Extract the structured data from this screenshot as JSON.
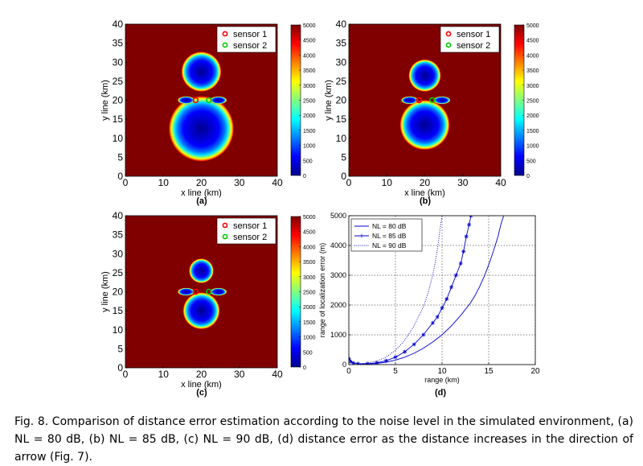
{
  "figure": {
    "caption": "Fig. 8. Comparison of distance error estimation according to the noise level in the simulated environment, (a) NL = 80 dB, (b) NL = 85 dB, (c) NL = 90 dB, (d) distance error as the distance increases in the direction of arrow (Fig. 7)."
  },
  "colors": {
    "heatmap_background": "#800000",
    "colormap": [
      "#00008f",
      "#0000ff",
      "#0080ff",
      "#00ffff",
      "#80ff80",
      "#ffff00",
      "#ff8000",
      "#ff0000",
      "#800000"
    ],
    "sensor1": "#ff0000",
    "sensor2": "#00cc00",
    "line_series": "#0000cc"
  },
  "chart_data": [
    {
      "type": "heatmap",
      "panel_label": "(a)",
      "xlabel": "x line (km)",
      "ylabel": "y line (km)",
      "xlim": [
        0,
        40
      ],
      "ylim": [
        0,
        40
      ],
      "xticks": [
        0,
        10,
        20,
        30,
        40
      ],
      "yticks": [
        0,
        5,
        10,
        15,
        20,
        25,
        30,
        35,
        40
      ],
      "colorbar": {
        "min": 0,
        "max": 5000,
        "ticks": [
          0,
          500,
          1000,
          1500,
          2000,
          2500,
          3000,
          3500,
          4000,
          4500,
          5000
        ]
      },
      "legend": [
        "sensor 1",
        "sensor 2"
      ],
      "sensors": [
        {
          "name": "sensor 1",
          "x": 18.5,
          "y": 20
        },
        {
          "name": "sensor 2",
          "x": 22,
          "y": 20
        }
      ],
      "low_error_region": {
        "upper_lobe_center": [
          20,
          27.5
        ],
        "upper_lobe_radius": 5.2,
        "lower_lobe_center": [
          20,
          12.5
        ],
        "lower_lobe_radius": 8.5
      }
    },
    {
      "type": "heatmap",
      "panel_label": "(b)",
      "xlabel": "x line (km)",
      "ylabel": "y line (km)",
      "xlim": [
        0,
        40
      ],
      "ylim": [
        0,
        40
      ],
      "xticks": [
        0,
        10,
        20,
        30,
        40
      ],
      "yticks": [
        0,
        5,
        10,
        15,
        20,
        25,
        30,
        35,
        40
      ],
      "colorbar": {
        "min": 0,
        "max": 5000,
        "ticks": [
          0,
          500,
          1000,
          1500,
          2000,
          2500,
          3000,
          3500,
          4000,
          4500,
          5000
        ]
      },
      "legend": [
        "sensor 1",
        "sensor 2"
      ],
      "sensors": [
        {
          "name": "sensor 1",
          "x": 18.5,
          "y": 20
        },
        {
          "name": "sensor 2",
          "x": 22,
          "y": 20
        }
      ],
      "low_error_region": {
        "upper_lobe_center": [
          20,
          26.5
        ],
        "upper_lobe_radius": 4.2,
        "lower_lobe_center": [
          20,
          13.5
        ],
        "lower_lobe_radius": 6.5
      }
    },
    {
      "type": "heatmap",
      "panel_label": "(c)",
      "xlabel": "x line (km)",
      "ylabel": "y line (km)",
      "xlim": [
        0,
        40
      ],
      "ylim": [
        0,
        40
      ],
      "xticks": [
        0,
        10,
        20,
        30,
        40
      ],
      "yticks": [
        0,
        5,
        10,
        15,
        20,
        25,
        30,
        35,
        40
      ],
      "colorbar": {
        "min": 0,
        "max": 5000,
        "ticks": [
          0,
          500,
          1000,
          1500,
          2000,
          2500,
          3000,
          3500,
          4000,
          4500,
          5000
        ]
      },
      "legend": [
        "sensor 1",
        "sensor 2"
      ],
      "sensors": [
        {
          "name": "sensor 1",
          "x": 18.5,
          "y": 20
        },
        {
          "name": "sensor 2",
          "x": 22,
          "y": 20
        }
      ],
      "low_error_region": {
        "upper_lobe_center": [
          20,
          25.5
        ],
        "upper_lobe_radius": 3.2,
        "lower_lobe_center": [
          20,
          15
        ],
        "lower_lobe_radius": 4.8
      }
    },
    {
      "type": "line",
      "panel_label": "(d)",
      "xlabel": "range (km)",
      "ylabel": "range of localization error (m)",
      "xlim": [
        0,
        20
      ],
      "ylim": [
        0,
        5000
      ],
      "xticks": [
        0,
        5,
        10,
        15,
        20
      ],
      "yticks": [
        0,
        1000,
        2000,
        3000,
        4000,
        5000
      ],
      "grid": "dotted",
      "legend_position": "top-left",
      "series": [
        {
          "name": "NL = 80 dB",
          "style": "solid",
          "x": [
            0,
            0.2,
            0.5,
            1,
            2,
            3,
            4,
            5,
            6,
            7,
            8,
            9,
            10,
            11,
            12,
            13,
            13.5,
            14,
            14.5,
            15,
            15.5,
            16,
            16.3,
            16.6
          ],
          "y": [
            250,
            120,
            60,
            30,
            20,
            40,
            80,
            150,
            250,
            380,
            550,
            760,
            1000,
            1300,
            1650,
            2050,
            2300,
            2600,
            2950,
            3350,
            3800,
            4300,
            4700,
            5000
          ]
        },
        {
          "name": "NL = 85 dB",
          "style": "star-markers",
          "x": [
            0,
            0.2,
            0.5,
            1,
            2,
            3,
            4,
            5,
            6,
            7,
            8,
            9,
            9.5,
            10,
            10.5,
            11,
            11.5,
            12,
            12.3,
            12.6,
            12.9,
            13.1
          ],
          "y": [
            200,
            100,
            50,
            30,
            30,
            60,
            130,
            250,
            430,
            680,
            1000,
            1400,
            1600,
            1900,
            2200,
            2600,
            3000,
            3400,
            3800,
            4300,
            4700,
            5000
          ]
        },
        {
          "name": "NL = 90 dB",
          "style": "dotted",
          "x": [
            0,
            0.2,
            0.5,
            1,
            2,
            3,
            4,
            5,
            6,
            7,
            8,
            8.5,
            9,
            9.3,
            9.6,
            9.8,
            10
          ],
          "y": [
            150,
            80,
            40,
            30,
            50,
            120,
            250,
            480,
            820,
            1300,
            1950,
            2400,
            3000,
            3500,
            4100,
            4600,
            5000
          ]
        }
      ]
    }
  ]
}
